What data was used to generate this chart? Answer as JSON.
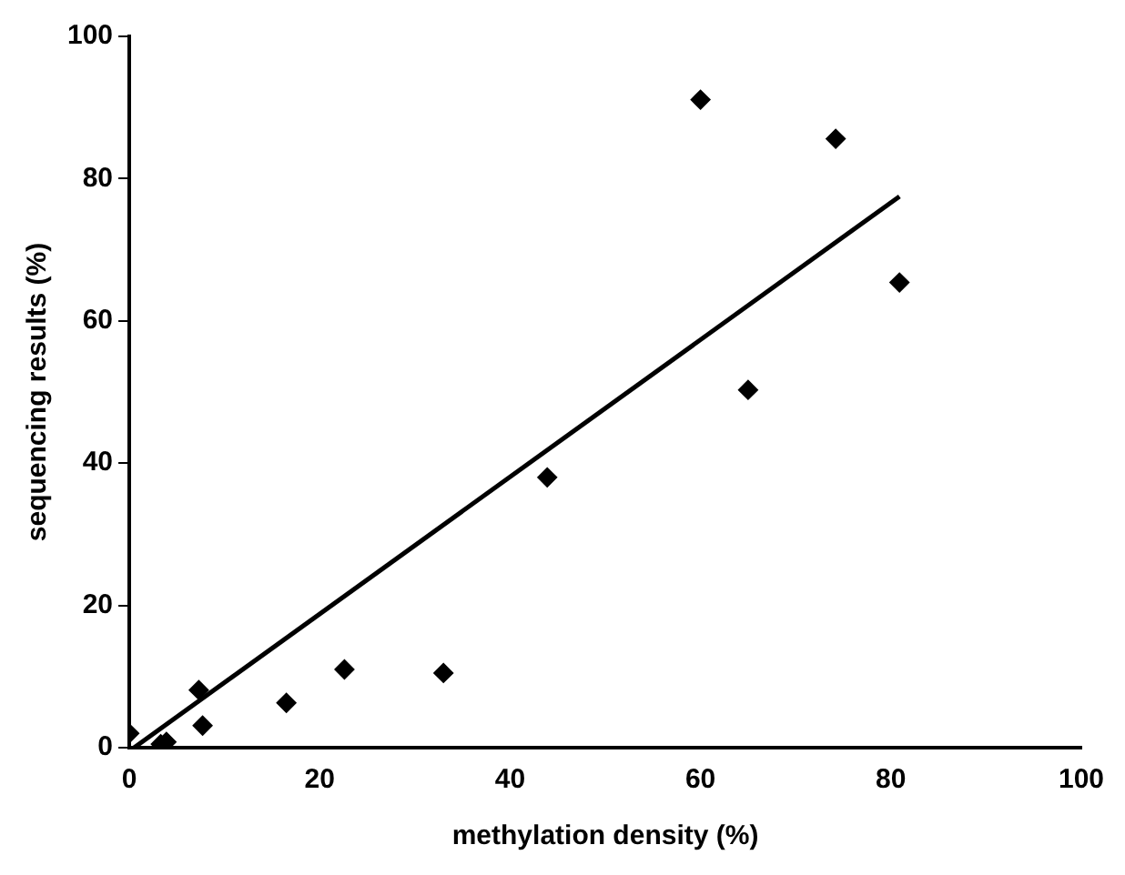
{
  "chart_data": {
    "type": "scatter",
    "xlabel": "methylation density (%)",
    "ylabel": "sequencing results (%)",
    "xlim": [
      0,
      100
    ],
    "xticks": [
      0,
      20,
      40,
      60,
      80,
      100
    ],
    "ylim": [
      0,
      100
    ],
    "yticks": [
      0,
      20,
      40,
      60,
      80,
      100
    ],
    "grid": false,
    "legend": false,
    "series": [
      {
        "marker": "diamond",
        "color": "#000000",
        "x": [
          0,
          3.3,
          3.9,
          7.3,
          7.7,
          16.5,
          22.6,
          33,
          43.9,
          60,
          65,
          74.2,
          80.9
        ],
        "values": [
          2,
          0.5,
          0.8,
          8.1,
          3.1,
          6.3,
          11,
          10.5,
          38,
          91.1,
          50.3,
          85.6,
          65.4
        ]
      },
      {
        "type": "line",
        "marker": "none",
        "color": "#000000",
        "x": [
          0.5,
          80.9
        ],
        "values": [
          0,
          77.5
        ]
      }
    ]
  }
}
